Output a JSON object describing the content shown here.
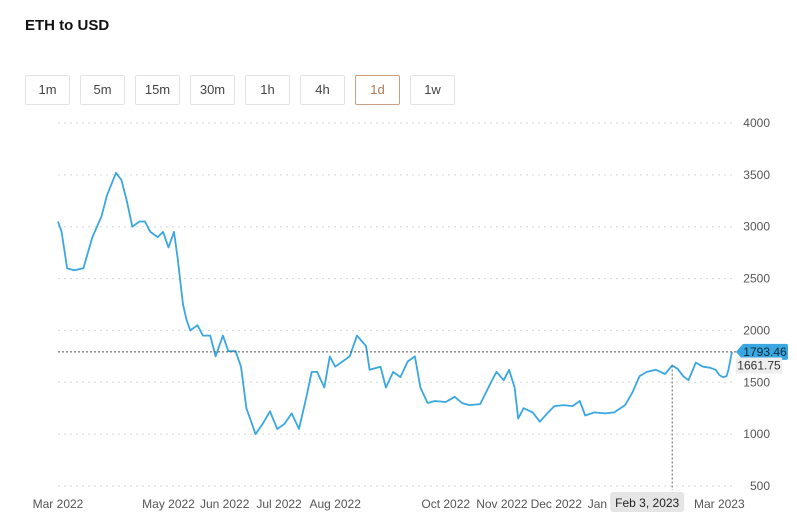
{
  "title": "ETH to USD",
  "timeframes": [
    {
      "label": "1m",
      "active": false
    },
    {
      "label": "5m",
      "active": false
    },
    {
      "label": "15m",
      "active": false
    },
    {
      "label": "30m",
      "active": false
    },
    {
      "label": "1h",
      "active": false
    },
    {
      "label": "4h",
      "active": false
    },
    {
      "label": "1d",
      "active": true
    },
    {
      "label": "1w",
      "active": false
    }
  ],
  "colors": {
    "line": "#3aa7e0",
    "current_badge": "#3aa7e0",
    "crosshair_badge": "#eeeeee"
  },
  "chart_data": {
    "type": "line",
    "title": "ETH to USD",
    "ylim": [
      500,
      4000
    ],
    "yticks": [
      500,
      1000,
      1500,
      2000,
      2500,
      3000,
      3500,
      4000
    ],
    "xlim": [
      "2022-03-01",
      "2023-03-08"
    ],
    "xtick_labels": [
      {
        "date": "2022-03-01",
        "label": "Mar 2022"
      },
      {
        "date": "2022-05-01",
        "label": "May 2022"
      },
      {
        "date": "2022-06-01",
        "label": "Jun 2022"
      },
      {
        "date": "2022-07-01",
        "label": "Jul 2022"
      },
      {
        "date": "2022-08-01",
        "label": "Aug 2022"
      },
      {
        "date": "2022-10-01",
        "label": "Oct 2022"
      },
      {
        "date": "2022-11-01",
        "label": "Nov 2022"
      },
      {
        "date": "2022-12-01",
        "label": "Dec 2022"
      },
      {
        "date": "2023-01-01",
        "label": "Jan 2023"
      },
      {
        "date": "2023-03-01",
        "label": "Mar 2023"
      }
    ],
    "grid": "horizontal-dotted",
    "series": [
      {
        "values": [
          [
            "2022-03-01",
            3050
          ],
          [
            "2022-03-03",
            2950
          ],
          [
            "2022-03-06",
            2600
          ],
          [
            "2022-03-10",
            2580
          ],
          [
            "2022-03-15",
            2600
          ],
          [
            "2022-03-20",
            2900
          ],
          [
            "2022-03-25",
            3100
          ],
          [
            "2022-03-28",
            3300
          ],
          [
            "2022-04-02",
            3520
          ],
          [
            "2022-04-05",
            3450
          ],
          [
            "2022-04-08",
            3250
          ],
          [
            "2022-04-11",
            3000
          ],
          [
            "2022-04-15",
            3050
          ],
          [
            "2022-04-18",
            3050
          ],
          [
            "2022-04-21",
            2950
          ],
          [
            "2022-04-25",
            2900
          ],
          [
            "2022-04-28",
            2950
          ],
          [
            "2022-05-01",
            2800
          ],
          [
            "2022-05-04",
            2950
          ],
          [
            "2022-05-06",
            2700
          ],
          [
            "2022-05-09",
            2250
          ],
          [
            "2022-05-11",
            2100
          ],
          [
            "2022-05-13",
            2000
          ],
          [
            "2022-05-17",
            2050
          ],
          [
            "2022-05-20",
            1950
          ],
          [
            "2022-05-24",
            1950
          ],
          [
            "2022-05-27",
            1750
          ],
          [
            "2022-05-31",
            1950
          ],
          [
            "2022-06-03",
            1800
          ],
          [
            "2022-06-07",
            1800
          ],
          [
            "2022-06-10",
            1650
          ],
          [
            "2022-06-13",
            1250
          ],
          [
            "2022-06-15",
            1150
          ],
          [
            "2022-06-18",
            1000
          ],
          [
            "2022-06-22",
            1100
          ],
          [
            "2022-06-26",
            1220
          ],
          [
            "2022-06-30",
            1050
          ],
          [
            "2022-07-04",
            1100
          ],
          [
            "2022-07-08",
            1200
          ],
          [
            "2022-07-12",
            1050
          ],
          [
            "2022-07-16",
            1350
          ],
          [
            "2022-07-19",
            1600
          ],
          [
            "2022-07-22",
            1600
          ],
          [
            "2022-07-26",
            1450
          ],
          [
            "2022-07-29",
            1750
          ],
          [
            "2022-08-01",
            1650
          ],
          [
            "2022-08-05",
            1700
          ],
          [
            "2022-08-09",
            1750
          ],
          [
            "2022-08-13",
            1950
          ],
          [
            "2022-08-18",
            1850
          ],
          [
            "2022-08-20",
            1620
          ],
          [
            "2022-08-26",
            1650
          ],
          [
            "2022-08-29",
            1450
          ],
          [
            "2022-09-02",
            1600
          ],
          [
            "2022-09-06",
            1550
          ],
          [
            "2022-09-10",
            1700
          ],
          [
            "2022-09-14",
            1750
          ],
          [
            "2022-09-17",
            1450
          ],
          [
            "2022-09-21",
            1300
          ],
          [
            "2022-09-25",
            1320
          ],
          [
            "2022-10-01",
            1310
          ],
          [
            "2022-10-06",
            1360
          ],
          [
            "2022-10-10",
            1300
          ],
          [
            "2022-10-14",
            1280
          ],
          [
            "2022-10-20",
            1290
          ],
          [
            "2022-10-26",
            1500
          ],
          [
            "2022-10-29",
            1600
          ],
          [
            "2022-11-02",
            1520
          ],
          [
            "2022-11-05",
            1620
          ],
          [
            "2022-11-08",
            1450
          ],
          [
            "2022-11-10",
            1150
          ],
          [
            "2022-11-13",
            1250
          ],
          [
            "2022-11-18",
            1210
          ],
          [
            "2022-11-22",
            1120
          ],
          [
            "2022-11-26",
            1200
          ],
          [
            "2022-11-30",
            1270
          ],
          [
            "2022-12-05",
            1280
          ],
          [
            "2022-12-10",
            1270
          ],
          [
            "2022-12-14",
            1320
          ],
          [
            "2022-12-17",
            1180
          ],
          [
            "2022-12-22",
            1210
          ],
          [
            "2022-12-28",
            1200
          ],
          [
            "2023-01-02",
            1210
          ],
          [
            "2023-01-08",
            1280
          ],
          [
            "2023-01-12",
            1400
          ],
          [
            "2023-01-16",
            1560
          ],
          [
            "2023-01-20",
            1600
          ],
          [
            "2023-01-25",
            1620
          ],
          [
            "2023-01-30",
            1580
          ],
          [
            "2023-02-03",
            1661.75
          ],
          [
            "2023-02-06",
            1630
          ],
          [
            "2023-02-09",
            1560
          ],
          [
            "2023-02-12",
            1520
          ],
          [
            "2023-02-16",
            1690
          ],
          [
            "2023-02-20",
            1650
          ],
          [
            "2023-02-24",
            1640
          ],
          [
            "2023-02-27",
            1620
          ],
          [
            "2023-03-01",
            1570
          ],
          [
            "2023-03-03",
            1550
          ],
          [
            "2023-03-05",
            1560
          ],
          [
            "2023-03-06",
            1620
          ],
          [
            "2023-03-08",
            1793.46
          ]
        ]
      }
    ],
    "annotations": {
      "current_price": {
        "label": "1793.46",
        "value": 1793.46
      },
      "crosshair": {
        "date": "2023-02-03",
        "date_label": "Feb 3, 2023",
        "price_label": "1661.75",
        "value": 1661.75
      }
    }
  }
}
